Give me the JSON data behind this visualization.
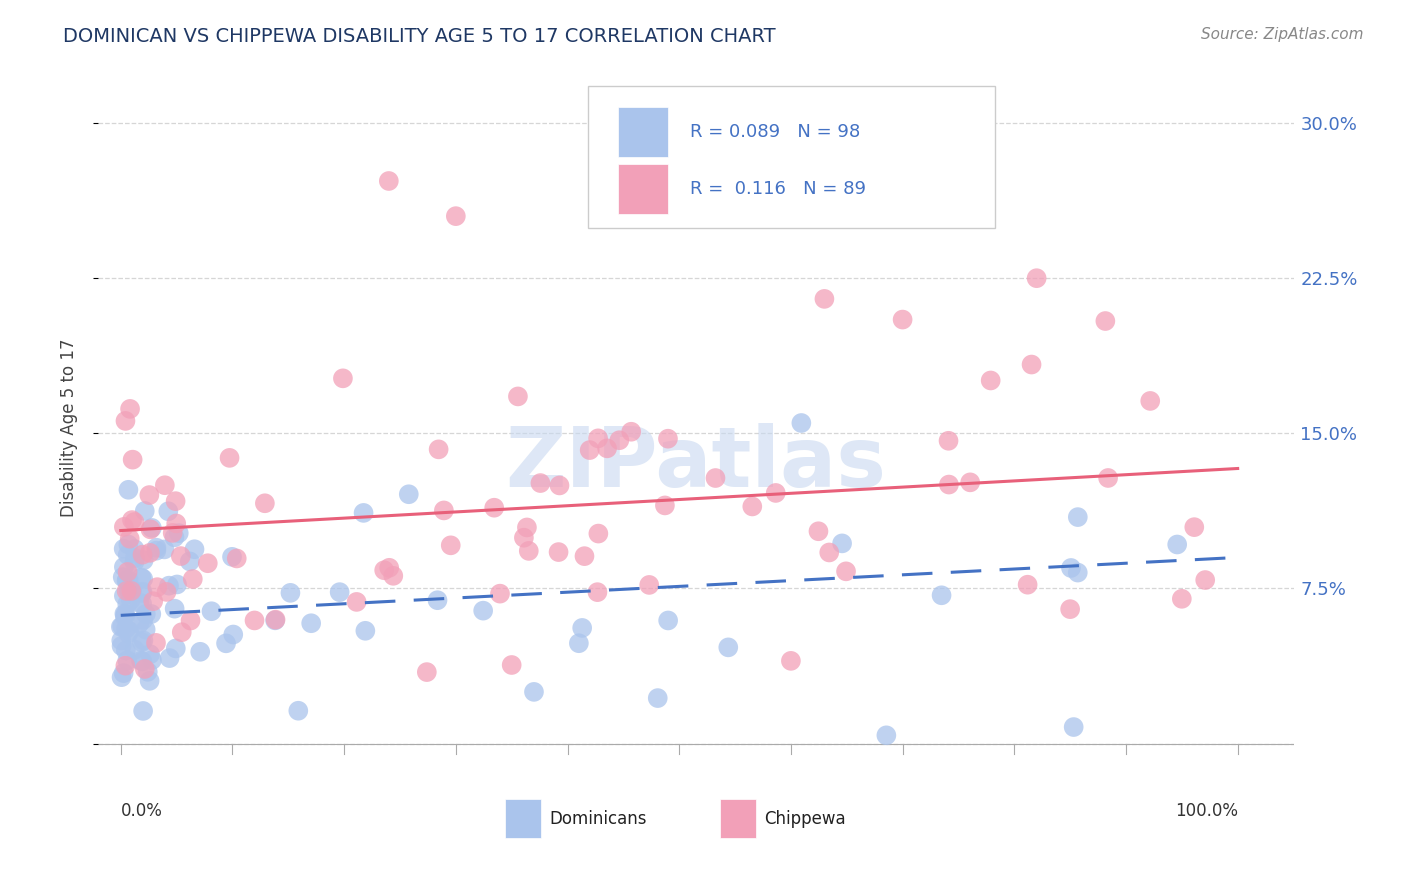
{
  "title": "DOMINICAN VS CHIPPEWA DISABILITY AGE 5 TO 17 CORRELATION CHART",
  "source": "Source: ZipAtlas.com",
  "ylabel": "Disability Age 5 to 17",
  "ytick_vals": [
    0.0,
    0.075,
    0.15,
    0.225,
    0.3
  ],
  "ytick_labels": [
    "",
    "7.5%",
    "15.0%",
    "22.5%",
    "30.0%"
  ],
  "xlim": [
    -0.02,
    1.05
  ],
  "ylim": [
    -0.02,
    0.325
  ],
  "dominican_color": "#aac4ec",
  "chippewa_color": "#f2a0b8",
  "dominican_line_color": "#4472c4",
  "chippewa_line_color": "#e8607a",
  "legend_text_color": "#4472c4",
  "title_color": "#1f3864",
  "source_color": "#888888",
  "ytick_color": "#4472c4",
  "watermark_color": "#c8d8f0",
  "grid_color": "#cccccc",
  "seed": 12345
}
